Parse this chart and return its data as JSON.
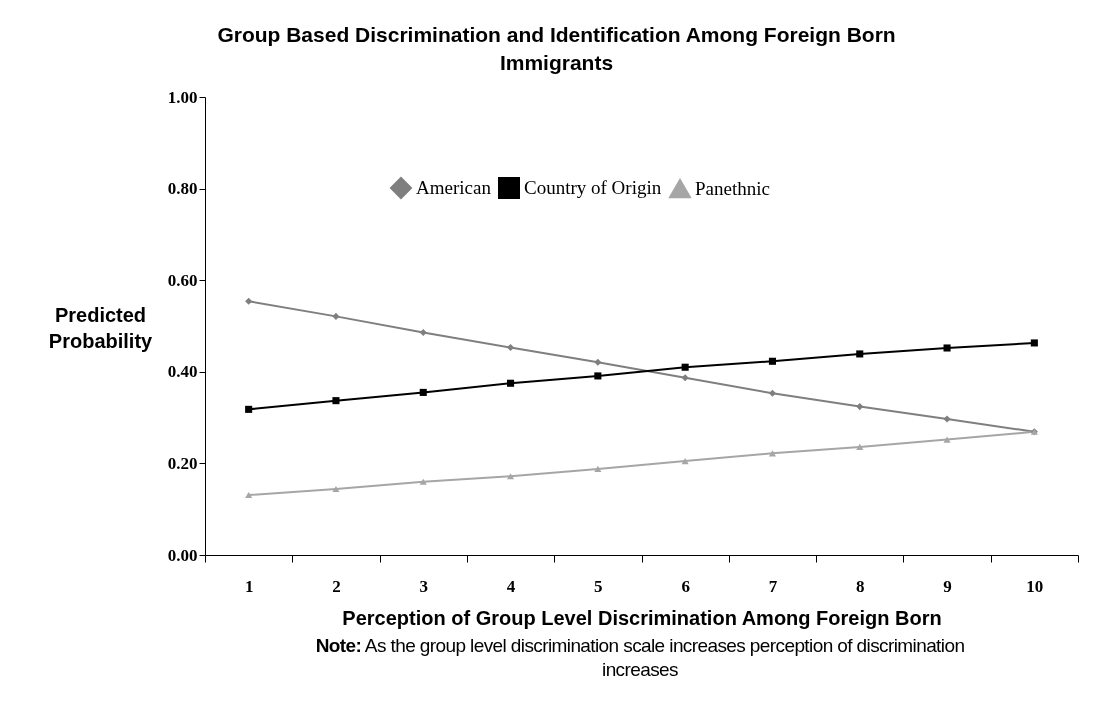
{
  "chart_data": {
    "type": "line",
    "title": "Group Based Discrimination and Identification Among Foreign Born Immigrants",
    "xlabel": "Perception of Group Level Discrimination Among Foreign Born",
    "ylabel": "Predicted Probability",
    "annotations": [
      "Note: As the group level discrimination scale increases perception of discrimination increases"
    ],
    "categories": [
      "1",
      "2",
      "3",
      "4",
      "5",
      "6",
      "7",
      "8",
      "9",
      "10"
    ],
    "series": [
      {
        "name": "American",
        "color": "#7f7f7f",
        "marker": "diamond",
        "values": [
          0.554,
          0.521,
          0.486,
          0.453,
          0.421,
          0.387,
          0.353,
          0.324,
          0.297,
          0.269
        ]
      },
      {
        "name": "Country of Origin",
        "color": "#000000",
        "marker": "square",
        "values": [
          0.318,
          0.337,
          0.355,
          0.375,
          0.391,
          0.41,
          0.423,
          0.439,
          0.452,
          0.463
        ]
      },
      {
        "name": "Panethnic",
        "color": "#a6a6a6",
        "marker": "triangle",
        "values": [
          0.131,
          0.144,
          0.16,
          0.172,
          0.188,
          0.205,
          0.222,
          0.236,
          0.252,
          0.269
        ]
      }
    ],
    "ylim": [
      0,
      1
    ],
    "yticks": [
      {
        "value": 0,
        "label": "0.00"
      },
      {
        "value": 0.2,
        "label": "0.20"
      },
      {
        "value": 0.4,
        "label": "0.40"
      },
      {
        "value": 0.6,
        "label": "0.60"
      },
      {
        "value": 0.8,
        "label": "0.80"
      },
      {
        "value": 1,
        "label": "1.00"
      }
    ],
    "legend": "top",
    "grid": false
  }
}
